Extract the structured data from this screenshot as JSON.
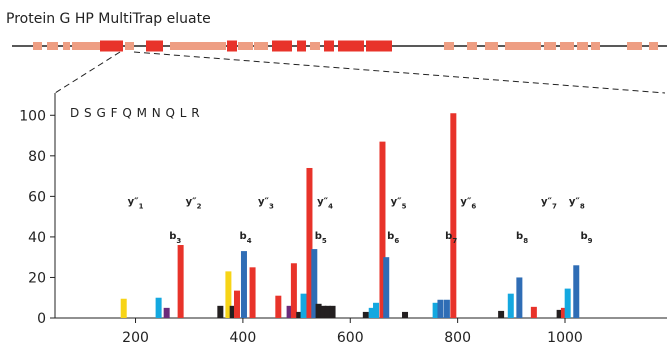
{
  "title": "Protein G HP MultiTrap eluate",
  "chart_data": {
    "type": "bar",
    "peptide_sequence": "D S G F Q M N Q L R",
    "x_ticks": [
      200,
      400,
      600,
      800,
      1000
    ],
    "y_ticks": [
      0,
      20,
      40,
      60,
      80,
      100
    ],
    "xlim": [
      50,
      1190
    ],
    "ylim": [
      0,
      110
    ],
    "grid": false,
    "colors": {
      "red": "#e8332a",
      "blue": "#2f6db5",
      "cyan": "#14a8e0",
      "yellow": "#f7d417",
      "purple": "#6b2a7a",
      "black": "#231f20",
      "coverage_light": "#ee9e83",
      "coverage_dark": "#e8332a",
      "sequence_line": "#222222"
    },
    "bars": [
      {
        "x": 178,
        "y": 9.5,
        "color": "yellow"
      },
      {
        "x": 243,
        "y": 10,
        "color": "cyan"
      },
      {
        "x": 258,
        "y": 5,
        "color": "purple"
      },
      {
        "x": 284,
        "y": 36,
        "color": "red"
      },
      {
        "x": 358,
        "y": 6,
        "color": "black"
      },
      {
        "x": 373,
        "y": 23,
        "color": "yellow"
      },
      {
        "x": 381,
        "y": 6,
        "color": "black"
      },
      {
        "x": 389,
        "y": 13.5,
        "color": "red"
      },
      {
        "x": 402,
        "y": 33,
        "color": "blue"
      },
      {
        "x": 418,
        "y": 25,
        "color": "red"
      },
      {
        "x": 466,
        "y": 11,
        "color": "red"
      },
      {
        "x": 487,
        "y": 6,
        "color": "purple"
      },
      {
        "x": 495,
        "y": 27,
        "color": "red"
      },
      {
        "x": 505,
        "y": 3,
        "color": "black"
      },
      {
        "x": 513,
        "y": 12,
        "color": "cyan"
      },
      {
        "x": 524,
        "y": 74,
        "color": "red"
      },
      {
        "x": 533,
        "y": 34,
        "color": "blue"
      },
      {
        "x": 541,
        "y": 7,
        "color": "black"
      },
      {
        "x": 550,
        "y": 6,
        "color": "black"
      },
      {
        "x": 558,
        "y": 6,
        "color": "black"
      },
      {
        "x": 567,
        "y": 6,
        "color": "black"
      },
      {
        "x": 629,
        "y": 3,
        "color": "black"
      },
      {
        "x": 640,
        "y": 5,
        "color": "cyan"
      },
      {
        "x": 648,
        "y": 7.5,
        "color": "cyan"
      },
      {
        "x": 660,
        "y": 87,
        "color": "red"
      },
      {
        "x": 667,
        "y": 30,
        "color": "blue"
      },
      {
        "x": 702,
        "y": 3,
        "color": "black"
      },
      {
        "x": 759,
        "y": 7.5,
        "color": "cyan"
      },
      {
        "x": 768,
        "y": 9,
        "color": "blue"
      },
      {
        "x": 780,
        "y": 9,
        "color": "blue"
      },
      {
        "x": 792,
        "y": 101,
        "color": "red"
      },
      {
        "x": 881,
        "y": 3.5,
        "color": "black"
      },
      {
        "x": 899,
        "y": 12,
        "color": "cyan"
      },
      {
        "x": 915,
        "y": 20,
        "color": "blue"
      },
      {
        "x": 942,
        "y": 5.5,
        "color": "red"
      },
      {
        "x": 990,
        "y": 4,
        "color": "black"
      },
      {
        "x": 998,
        "y": 5,
        "color": "red"
      },
      {
        "x": 1005,
        "y": 14.5,
        "color": "cyan"
      },
      {
        "x": 1021,
        "y": 26,
        "color": "blue"
      }
    ],
    "y_ion_labels": [
      {
        "text": "y\"1",
        "x": 200,
        "y": 56
      },
      {
        "text": "y\"2",
        "x": 308,
        "y": 56
      },
      {
        "text": "y\"3",
        "x": 443,
        "y": 56
      },
      {
        "text": "y\"4",
        "x": 553,
        "y": 56
      },
      {
        "text": "y\"5",
        "x": 690,
        "y": 56
      },
      {
        "text": "y\"6",
        "x": 820,
        "y": 56
      },
      {
        "text": "y\"7",
        "x": 970,
        "y": 56
      },
      {
        "text": "y\"8",
        "x": 1022,
        "y": 56
      }
    ],
    "b_ion_labels": [
      {
        "text": "b3",
        "x": 274,
        "y": 39
      },
      {
        "text": "b4",
        "x": 405,
        "y": 39
      },
      {
        "text": "b5",
        "x": 545,
        "y": 39
      },
      {
        "text": "b6",
        "x": 680,
        "y": 39
      },
      {
        "text": "b7",
        "x": 788,
        "y": 39
      },
      {
        "text": "b8",
        "x": 920,
        "y": 39
      },
      {
        "text": "b9",
        "x": 1040,
        "y": 39
      }
    ]
  }
}
